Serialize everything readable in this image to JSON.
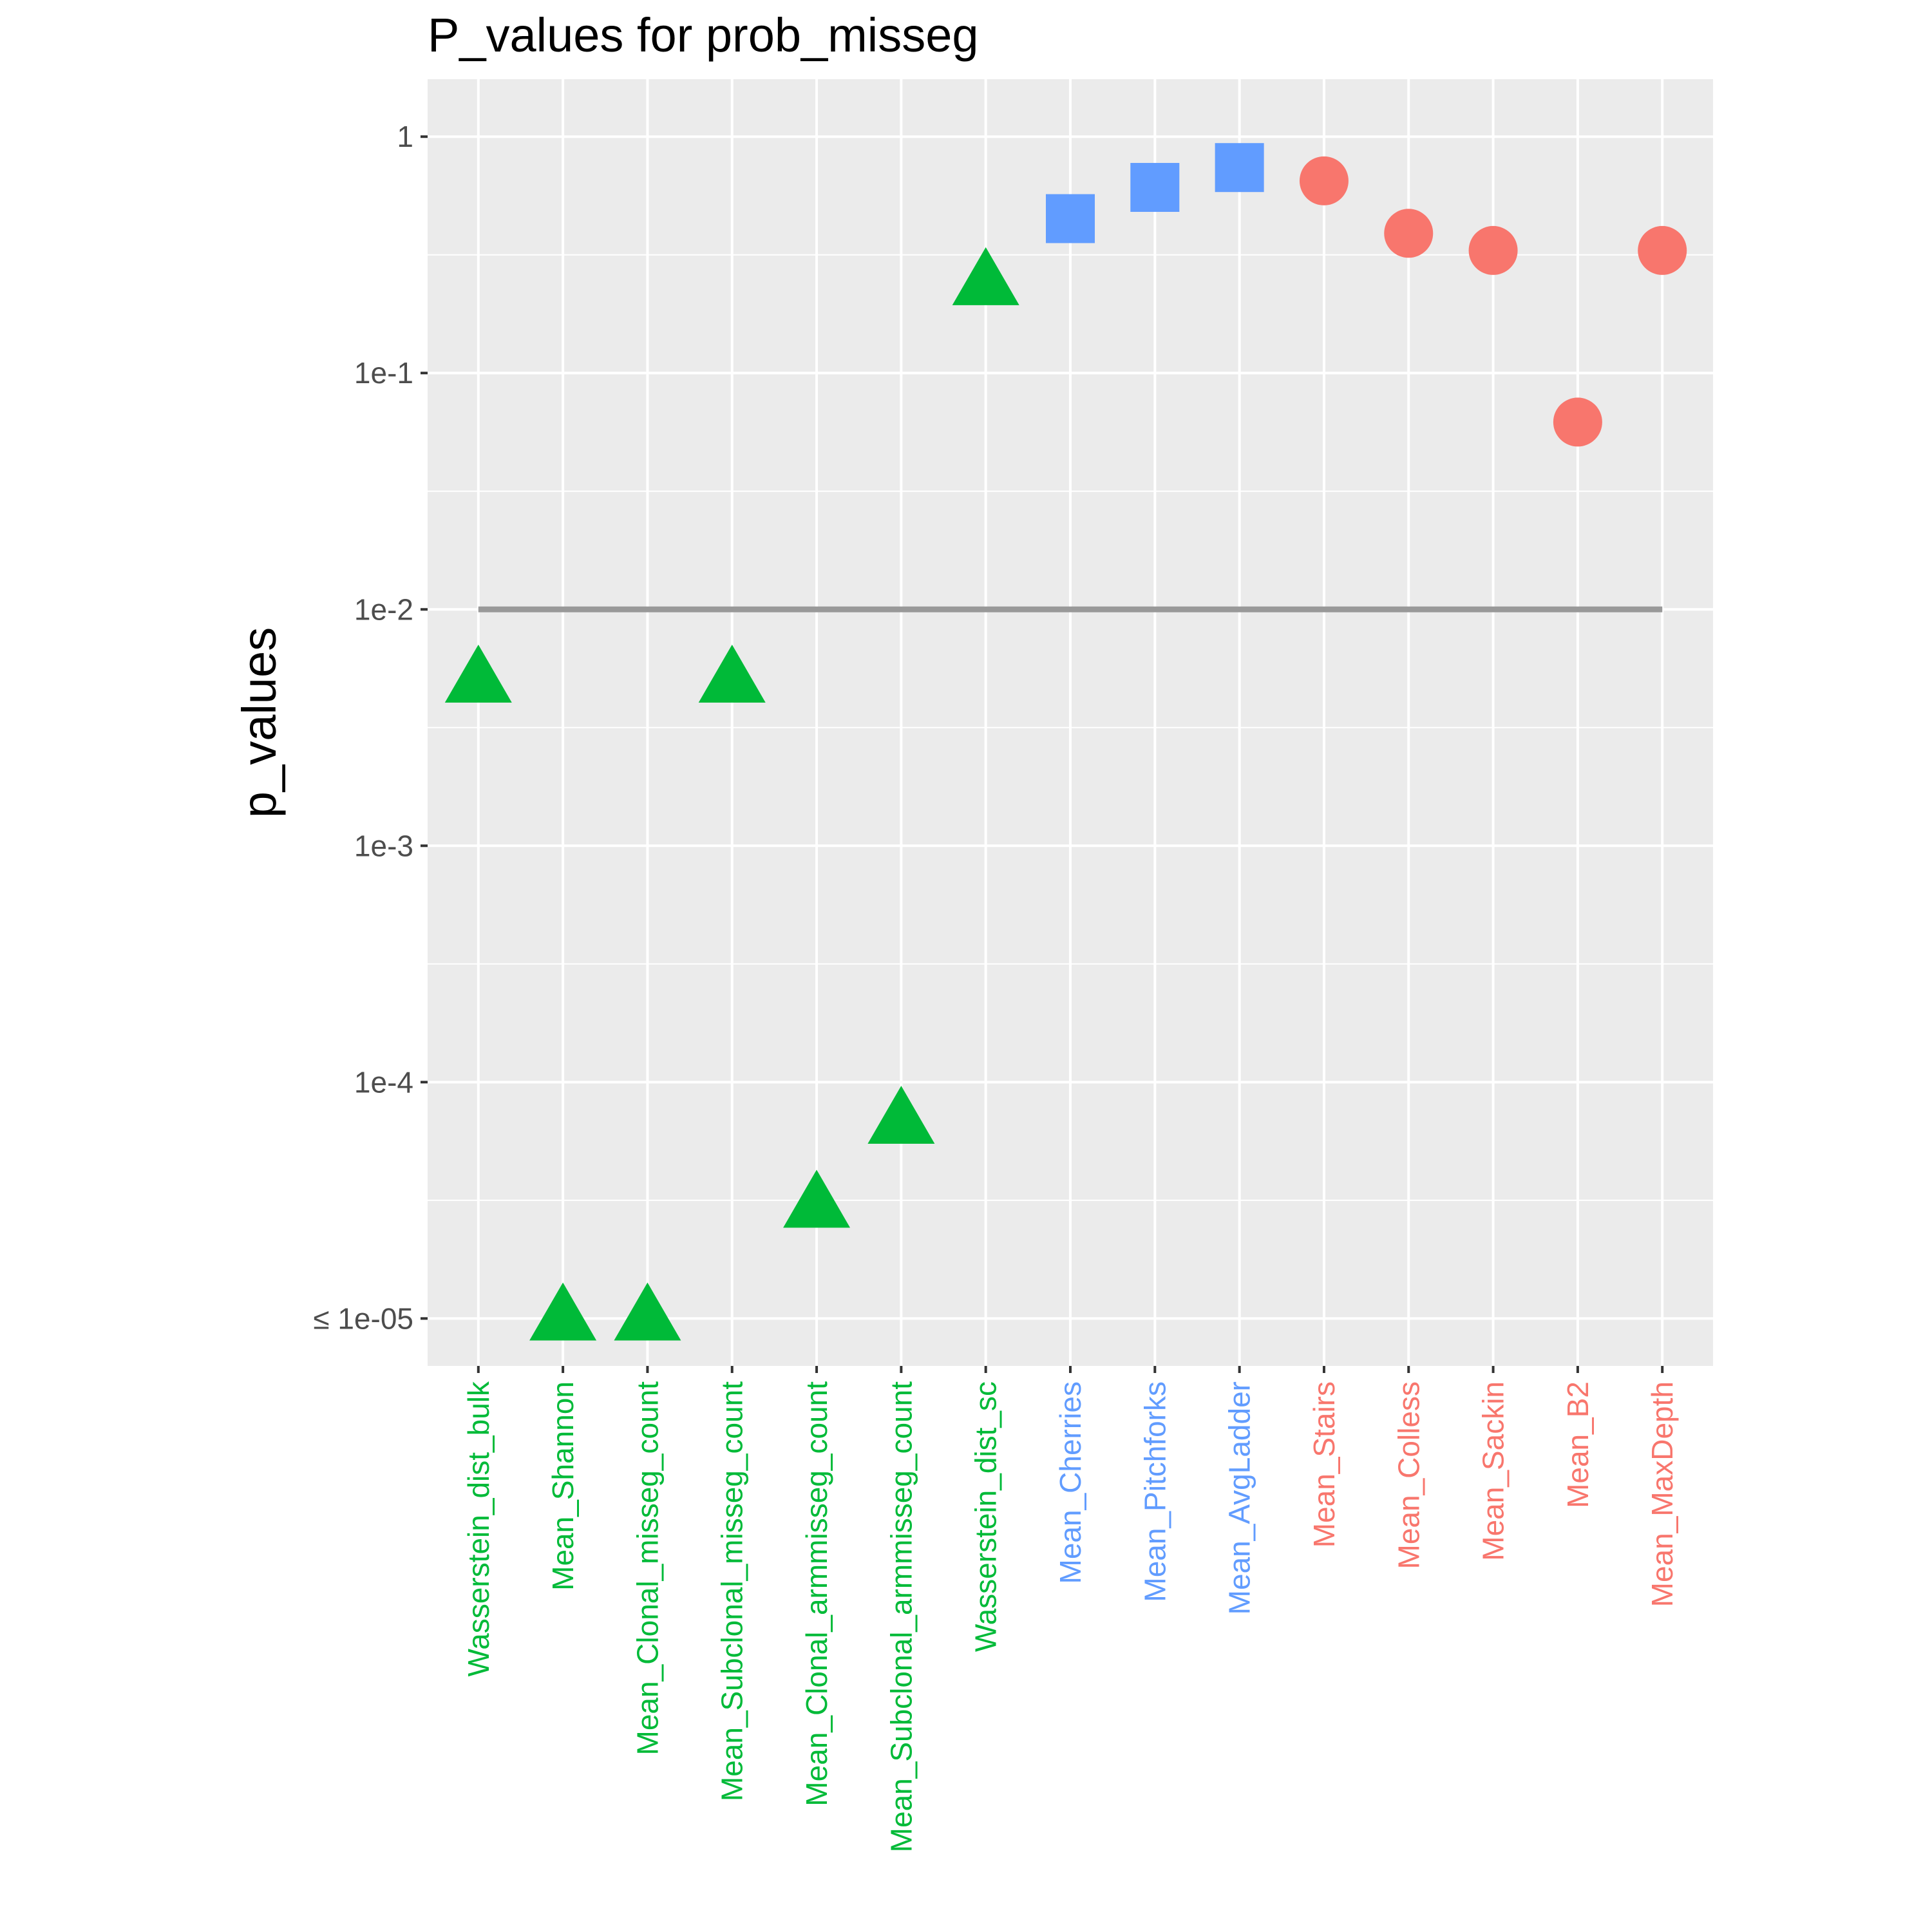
{
  "chart_data": {
    "type": "scatter",
    "title": "P_values for prob_misseg",
    "xlabel": "",
    "ylabel": "p_values",
    "y_scale": "log10",
    "y_range": [
      6.3e-06,
      1.75
    ],
    "y_ticks": [
      {
        "value": 1,
        "label": "1"
      },
      {
        "value": 0.1,
        "label": "1e-1"
      },
      {
        "value": 0.01,
        "label": "1e-2"
      },
      {
        "value": 0.001,
        "label": "1e-3"
      },
      {
        "value": 0.0001,
        "label": "1e-4"
      },
      {
        "value": 1e-05,
        "label": "≤ 1e-05"
      }
    ],
    "grid": true,
    "panel_background": "#ebebeb",
    "threshold": {
      "value": 0.01,
      "color": "#999999"
    },
    "groups": [
      {
        "shape": "triangle",
        "color": "#00ba38"
      },
      {
        "shape": "square",
        "color": "#619cff"
      },
      {
        "shape": "circle",
        "color": "#f8766d"
      }
    ],
    "points": [
      {
        "label": "Wasserstein_dist_bulk",
        "value": 0.005,
        "group": 0
      },
      {
        "label": "Mean_Shannon",
        "value": 1e-05,
        "group": 0
      },
      {
        "label": "Mean_Clonal_misseg_count",
        "value": 1e-05,
        "group": 0
      },
      {
        "label": "Mean_Subclonal_misseg_count",
        "value": 0.005,
        "group": 0
      },
      {
        "label": "Mean_Clonal_armmisseg_count",
        "value": 3e-05,
        "group": 0
      },
      {
        "label": "Mean_Subclonal_armmisseg_count",
        "value": 6.8e-05,
        "group": 0
      },
      {
        "label": "Wasserstein_dist_sc",
        "value": 0.24,
        "group": 0
      },
      {
        "label": "Mean_Cherries",
        "value": 0.45,
        "group": 1
      },
      {
        "label": "Mean_Pitchforks",
        "value": 0.61,
        "group": 1
      },
      {
        "label": "Mean_AvgLadder",
        "value": 0.74,
        "group": 1
      },
      {
        "label": "Mean_Stairs",
        "value": 0.65,
        "group": 2
      },
      {
        "label": "Mean_Colless",
        "value": 0.39,
        "group": 2
      },
      {
        "label": "Mean_Sackin",
        "value": 0.33,
        "group": 2
      },
      {
        "label": "Mean_B2",
        "value": 0.062,
        "group": 2
      },
      {
        "label": "Mean_MaxDepth",
        "value": 0.33,
        "group": 2
      }
    ]
  }
}
